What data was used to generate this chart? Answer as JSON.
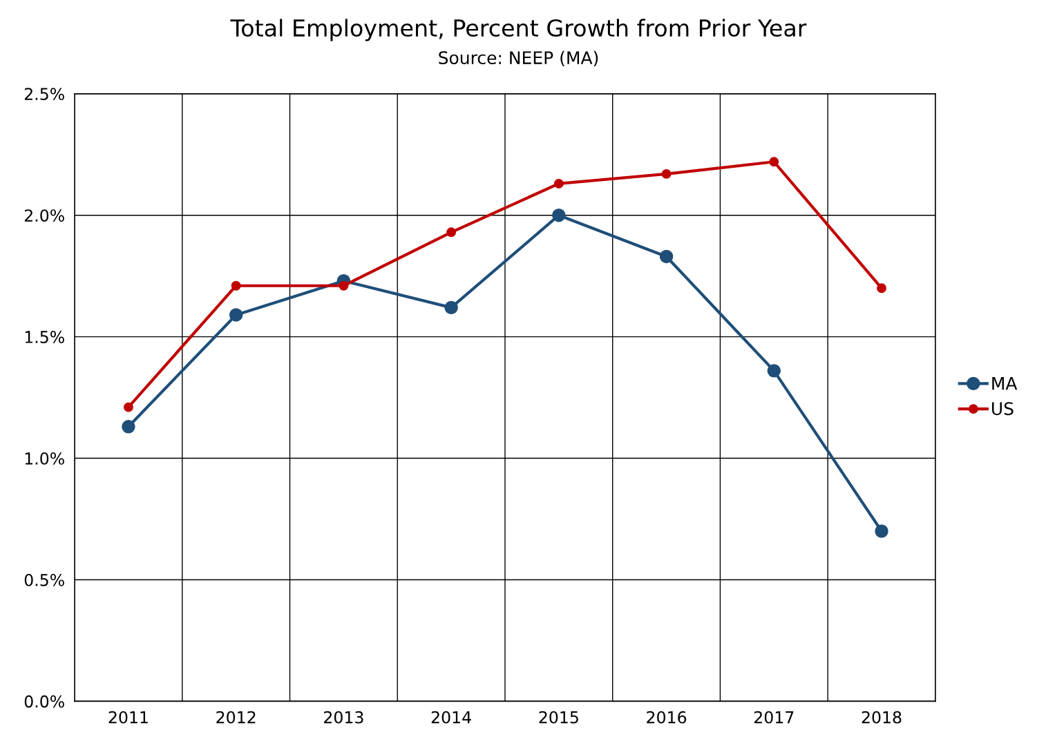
{
  "chart_data": {
    "type": "line",
    "title": "Total Employment, Percent Growth from Prior Year",
    "subtitle": "Source: NEEP (MA)",
    "categories": [
      "2011",
      "2012",
      "2013",
      "2014",
      "2015",
      "2016",
      "2017",
      "2018"
    ],
    "series": [
      {
        "name": "MA",
        "color": "#1f4e79",
        "values": [
          1.13,
          1.59,
          1.73,
          1.62,
          2.0,
          1.83,
          1.36,
          0.7
        ]
      },
      {
        "name": "US",
        "color": "#c00000",
        "values": [
          1.21,
          1.71,
          1.71,
          1.93,
          2.13,
          2.17,
          2.22,
          1.7
        ]
      }
    ],
    "ylim": [
      0,
      2.5
    ],
    "yticks": [
      {
        "value": 0,
        "label": "0.0%"
      },
      {
        "value": 0.5,
        "label": "0.5%"
      },
      {
        "value": 1.0,
        "label": "1.0%"
      },
      {
        "value": 1.5,
        "label": "1.5%"
      },
      {
        "value": 2.0,
        "label": "2.0%"
      },
      {
        "value": 2.5,
        "label": "2.5%"
      }
    ],
    "grid": true,
    "legend": "right",
    "marker": "circle",
    "line_style": "solid"
  }
}
